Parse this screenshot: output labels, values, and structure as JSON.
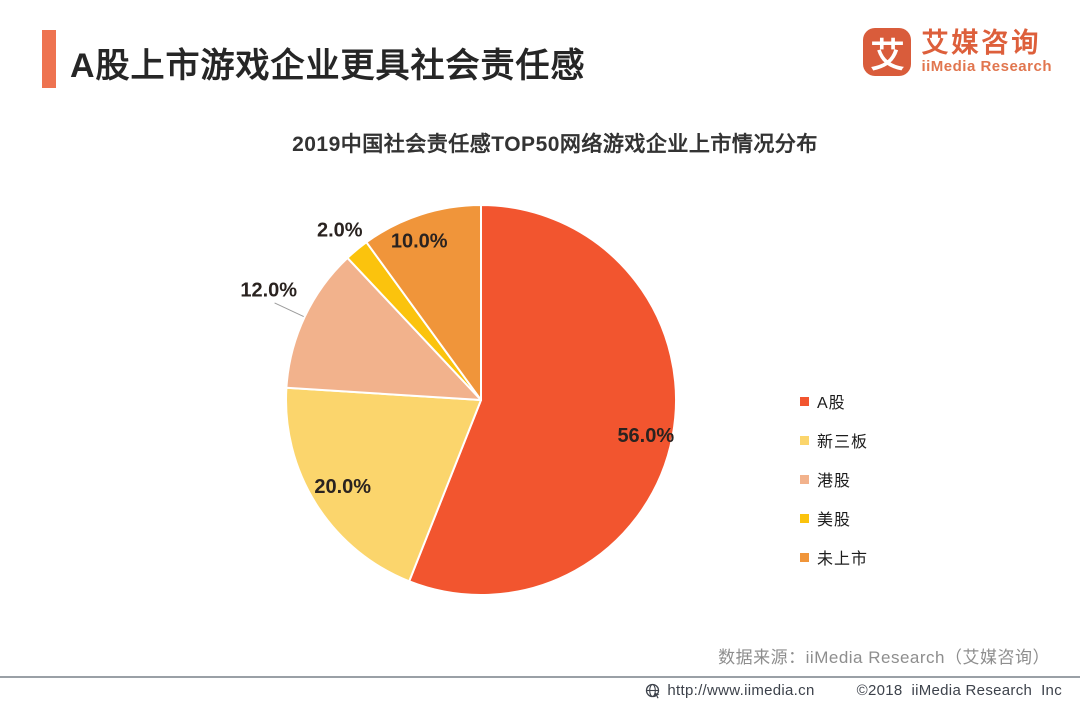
{
  "header": {
    "title": "A股上市游戏企业更具社会责任感",
    "accent_color": "#EE7350"
  },
  "logo": {
    "icon_char": "艾",
    "brand_cn": "艾媒咨询",
    "brand_en": "iiMedia Research",
    "brand_color": "#DD5F3B",
    "mark_color": "#D95C3B"
  },
  "chart_data": {
    "type": "pie",
    "title": "2019中国社会责任感TOP50网络游戏企业上市情况分布",
    "start_angle": "12-oclock",
    "direction": "clockwise",
    "legend_position": "right",
    "slices": [
      {
        "label": "A股",
        "value": 56.0,
        "display": "56.0%",
        "color": "#F2552F"
      },
      {
        "label": "新三板",
        "value": 20.0,
        "display": "20.0%",
        "color": "#FBD56C"
      },
      {
        "label": "港股",
        "value": 12.0,
        "display": "12.0%",
        "color": "#F2B28C"
      },
      {
        "label": "美股",
        "value": 2.0,
        "display": "2.0%",
        "color": "#FBC30D"
      },
      {
        "label": "未上市",
        "value": 10.0,
        "display": "10.0%",
        "color": "#F0953A"
      }
    ]
  },
  "source_note": "数据来源：iiMedia Research（艾媒咨询）",
  "footer": {
    "url": "http://www.iimedia.cn",
    "copyright": "©2018  iiMedia Research  Inc"
  }
}
